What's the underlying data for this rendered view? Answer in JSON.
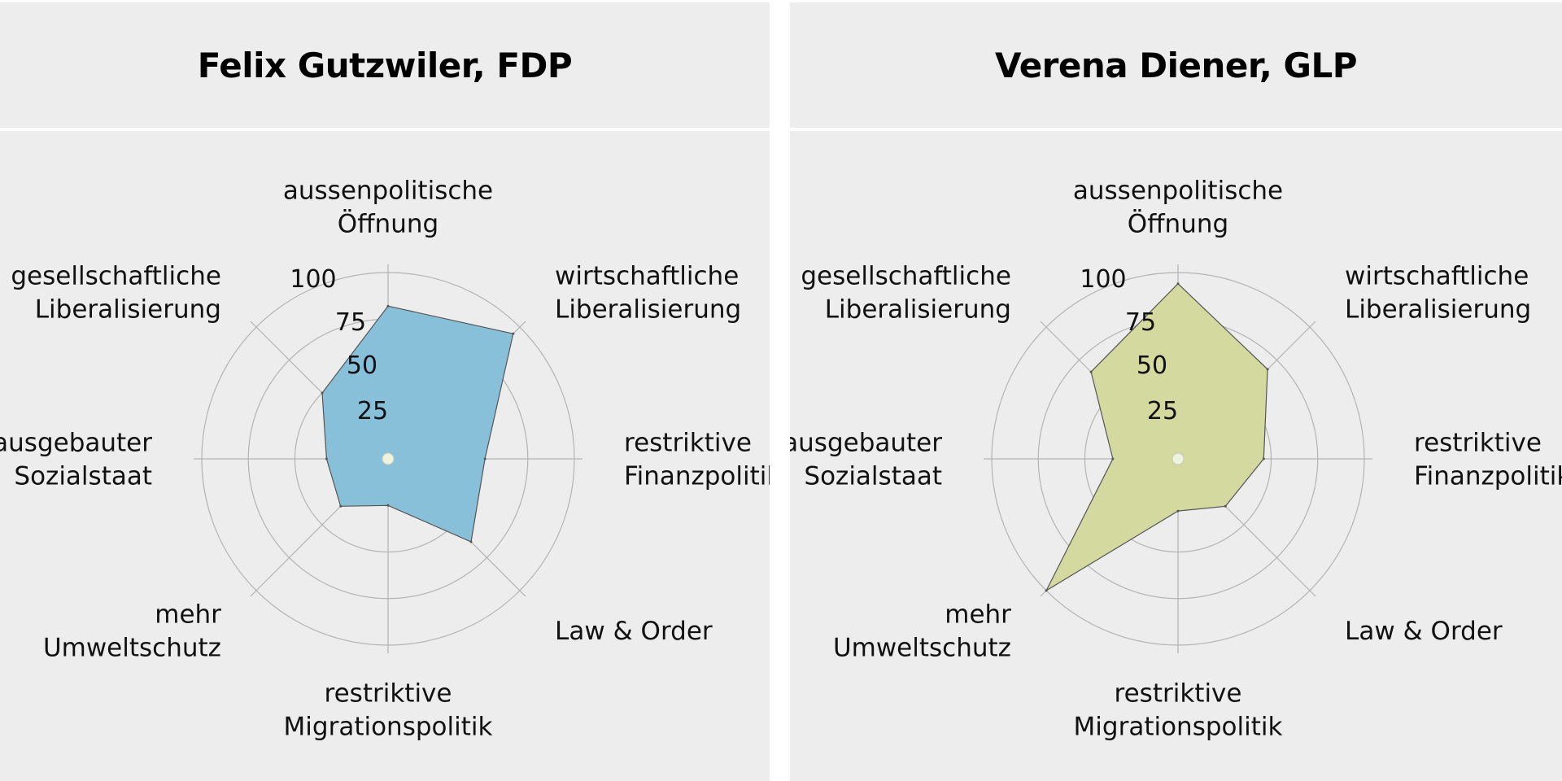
{
  "chart_data": [
    {
      "type": "radar",
      "title": "Felix Gutzwiler, FDP",
      "fill_color": "#89c0d9",
      "axes": [
        {
          "lines": [
            "aussenpolitische",
            "Öffnung"
          ]
        },
        {
          "lines": [
            "wirtschaftliche",
            "Liberalisierung"
          ]
        },
        {
          "lines": [
            "restriktive",
            "Finanzpolitik"
          ]
        },
        {
          "lines": [
            "Law & Order"
          ]
        },
        {
          "lines": [
            "restriktive",
            "Migrationspolitik"
          ]
        },
        {
          "lines": [
            "mehr",
            "Umweltschutz"
          ]
        },
        {
          "lines": [
            "ausgebauter",
            "Sozialstaat"
          ]
        },
        {
          "lines": [
            "gesellschaftliche",
            "Liberalisierung"
          ]
        }
      ],
      "values": [
        82,
        95,
        52,
        63,
        25,
        36,
        33,
        50
      ],
      "rticks": [
        "25",
        "50",
        "75",
        "100"
      ],
      "rlim": [
        0,
        100
      ]
    },
    {
      "type": "radar",
      "title": "Verena Diener, GLP",
      "fill_color": "#d3d99f",
      "axes": [
        {
          "lines": [
            "aussenpolitische",
            "Öffnung"
          ]
        },
        {
          "lines": [
            "wirtschaftliche",
            "Liberalisierung"
          ]
        },
        {
          "lines": [
            "restriktive",
            "Finanzpolitik"
          ]
        },
        {
          "lines": [
            "Law & Order"
          ]
        },
        {
          "lines": [
            "restriktive",
            "Migrationspolitik"
          ]
        },
        {
          "lines": [
            "mehr",
            "Umweltschutz"
          ]
        },
        {
          "lines": [
            "ausgebauter",
            "Sozialstaat"
          ]
        },
        {
          "lines": [
            "gesellschaftliche",
            "Liberalisierung"
          ]
        }
      ],
      "values": [
        94,
        68,
        46,
        36,
        28,
        100,
        35,
        66
      ],
      "rticks": [
        "25",
        "50",
        "75",
        "100"
      ],
      "rlim": [
        0,
        100
      ]
    }
  ]
}
